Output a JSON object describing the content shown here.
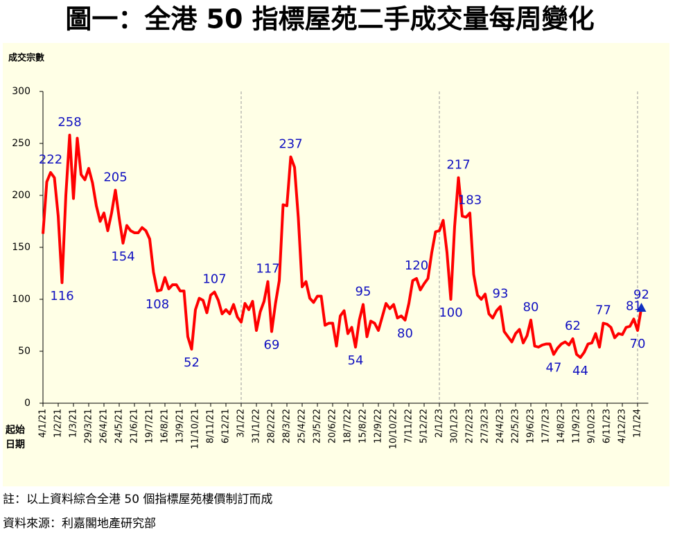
{
  "chart_data": {
    "type": "line",
    "title": "圖一：全港 50 指標屋苑二手成交量每周變化",
    "y_label": "成交宗數",
    "x_label": [
      "起始",
      "日期"
    ],
    "categories": [
      "4/1/21",
      null,
      null,
      null,
      "1/2/21",
      null,
      null,
      null,
      "1/3/21",
      null,
      null,
      null,
      "29/3/21",
      null,
      null,
      null,
      "26/4/21",
      null,
      null,
      null,
      "24/5/21",
      null,
      null,
      null,
      "21/6/21",
      null,
      null,
      null,
      "19/7/21",
      null,
      null,
      null,
      "16/8/21",
      null,
      null,
      null,
      "13/9/21",
      null,
      null,
      null,
      "11/10/21",
      null,
      null,
      null,
      "8/11/21",
      null,
      null,
      null,
      "6/12/21",
      null,
      null,
      null,
      "3/1/22",
      null,
      null,
      null,
      "31/1/22",
      null,
      null,
      null,
      "28/2/22",
      null,
      null,
      null,
      "28/3/22",
      null,
      null,
      null,
      "25/4/22",
      null,
      null,
      null,
      "23/5/22",
      null,
      null,
      null,
      "20/6/22",
      null,
      null,
      null,
      "18/7/22",
      null,
      null,
      null,
      "15/8/22",
      null,
      null,
      null,
      "12/9/22",
      null,
      null,
      null,
      "10/10/22",
      null,
      null,
      null,
      "7/11/22",
      null,
      null,
      null,
      "5/12/22",
      null,
      null,
      null,
      "2/1/23",
      null,
      null,
      null,
      "30/1/23",
      null,
      null,
      null,
      "27/2/23",
      null,
      null,
      null,
      "27/3/23",
      null,
      null,
      null,
      "24/4/23",
      null,
      null,
      null,
      "22/5/23",
      null,
      null,
      null,
      "19/6/23",
      null,
      null,
      null,
      "17/7/23",
      null,
      null,
      null,
      "14/8/23",
      null,
      null,
      null,
      "11/9/23",
      null,
      null,
      null,
      "9/10/23",
      null,
      null,
      null,
      "6/11/23",
      null,
      null,
      null,
      "4/12/23",
      null,
      null,
      null,
      "1/1/24",
      null
    ],
    "values": [
      163,
      213,
      222,
      217,
      180,
      116,
      200,
      258,
      197,
      255,
      220,
      215,
      226,
      212,
      190,
      175,
      183,
      166,
      183,
      205,
      178,
      154,
      171,
      166,
      164,
      164,
      169,
      166,
      158,
      126,
      108,
      109,
      121,
      110,
      114,
      114,
      108,
      108,
      64,
      52,
      90,
      101,
      99,
      87,
      104,
      107,
      99,
      86,
      90,
      86,
      95,
      83,
      78,
      96,
      90,
      98,
      70,
      88,
      98,
      117,
      69,
      96,
      118,
      191,
      190,
      237,
      227,
      178,
      112,
      117,
      101,
      97,
      103,
      103,
      75,
      77,
      77,
      55,
      84,
      89,
      67,
      73,
      54,
      80,
      95,
      64,
      79,
      77,
      70,
      83,
      96,
      91,
      95,
      82,
      84,
      80,
      96,
      118,
      120,
      109,
      115,
      120,
      145,
      165,
      166,
      176,
      145,
      100,
      170,
      217,
      180,
      179,
      183,
      124,
      104,
      100,
      105,
      86,
      82,
      89,
      93,
      69,
      64,
      59,
      67,
      71,
      58,
      65,
      80,
      55,
      54,
      56,
      57,
      57,
      47,
      53,
      57,
      59,
      56,
      62,
      47,
      44,
      49,
      57,
      58,
      67,
      54,
      77,
      76,
      73,
      63,
      67,
      66,
      73,
      74,
      81,
      70,
      92
    ],
    "color": "#ff0000",
    "label_color": "#1010c0",
    "data_labels": [
      {
        "index": 2,
        "position": "above"
      },
      {
        "index": 5,
        "position": "below"
      },
      {
        "index": 7,
        "position": "above"
      },
      {
        "index": 19,
        "position": "above"
      },
      {
        "index": 21,
        "position": "below"
      },
      {
        "index": 30,
        "position": "below"
      },
      {
        "index": 39,
        "position": "below"
      },
      {
        "index": 45,
        "position": "above"
      },
      {
        "index": 59,
        "position": "above"
      },
      {
        "index": 60,
        "position": "below"
      },
      {
        "index": 65,
        "position": "above"
      },
      {
        "index": 82,
        "position": "below"
      },
      {
        "index": 84,
        "position": "above"
      },
      {
        "index": 95,
        "position": "below"
      },
      {
        "index": 98,
        "position": "above"
      },
      {
        "index": 107,
        "position": "below"
      },
      {
        "index": 109,
        "position": "above"
      },
      {
        "index": 112,
        "position": "above"
      },
      {
        "index": 120,
        "position": "above"
      },
      {
        "index": 128,
        "position": "above"
      },
      {
        "index": 134,
        "position": "below"
      },
      {
        "index": 139,
        "position": "above"
      },
      {
        "index": 141,
        "position": "below"
      },
      {
        "index": 147,
        "position": "above"
      },
      {
        "index": 155,
        "position": "above"
      },
      {
        "index": 156,
        "position": "below"
      },
      {
        "index": 157,
        "position": "above"
      }
    ],
    "last_marker": "triangle",
    "year_separators": [
      52,
      104,
      156
    ],
    "ylim": [
      0,
      300
    ],
    "yticks": [
      0,
      50,
      100,
      150,
      200,
      250,
      300
    ]
  },
  "notes": [
    "註：以上資料綜合全港 50 個指標屋苑樓價制訂而成",
    "資料來源：利嘉閣地產研究部"
  ]
}
